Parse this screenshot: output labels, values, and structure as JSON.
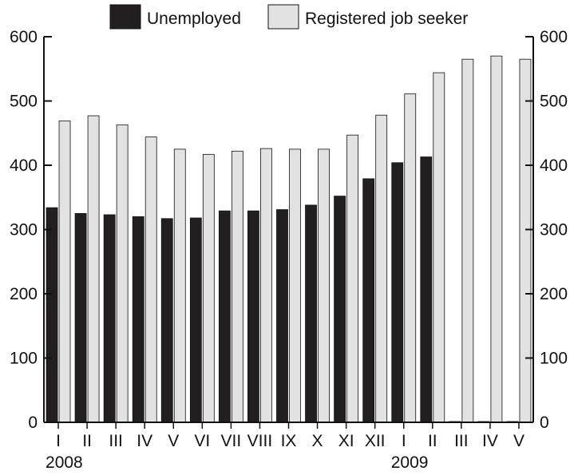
{
  "chart_data": {
    "type": "bar",
    "categories": [
      "I",
      "II",
      "III",
      "IV",
      "V",
      "VI",
      "VII",
      "VIII",
      "IX",
      "X",
      "XI",
      "XII",
      "I",
      "II",
      "III",
      "IV",
      "V"
    ],
    "year_labels": [
      {
        "category_index": 0,
        "label": "2008"
      },
      {
        "category_index": 12,
        "label": "2009"
      }
    ],
    "series": [
      {
        "name": "Unemployed",
        "color": "#231f20",
        "values": [
          334,
          325,
          323,
          320,
          317,
          318,
          329,
          329,
          331,
          338,
          352,
          379,
          404,
          413,
          0,
          0,
          0
        ]
      },
      {
        "name": "Registered job seeker",
        "color": "#e2e2e2",
        "values": [
          469,
          477,
          463,
          444,
          425,
          417,
          422,
          426,
          425,
          425,
          447,
          478,
          511,
          544,
          565,
          570,
          565
        ]
      }
    ],
    "ylim": [
      0,
      600
    ],
    "yticks": [
      0,
      100,
      200,
      300,
      400,
      500,
      600
    ],
    "y_axis_left": true,
    "y_axis_right": true,
    "grid": false,
    "legend_position": "top"
  }
}
